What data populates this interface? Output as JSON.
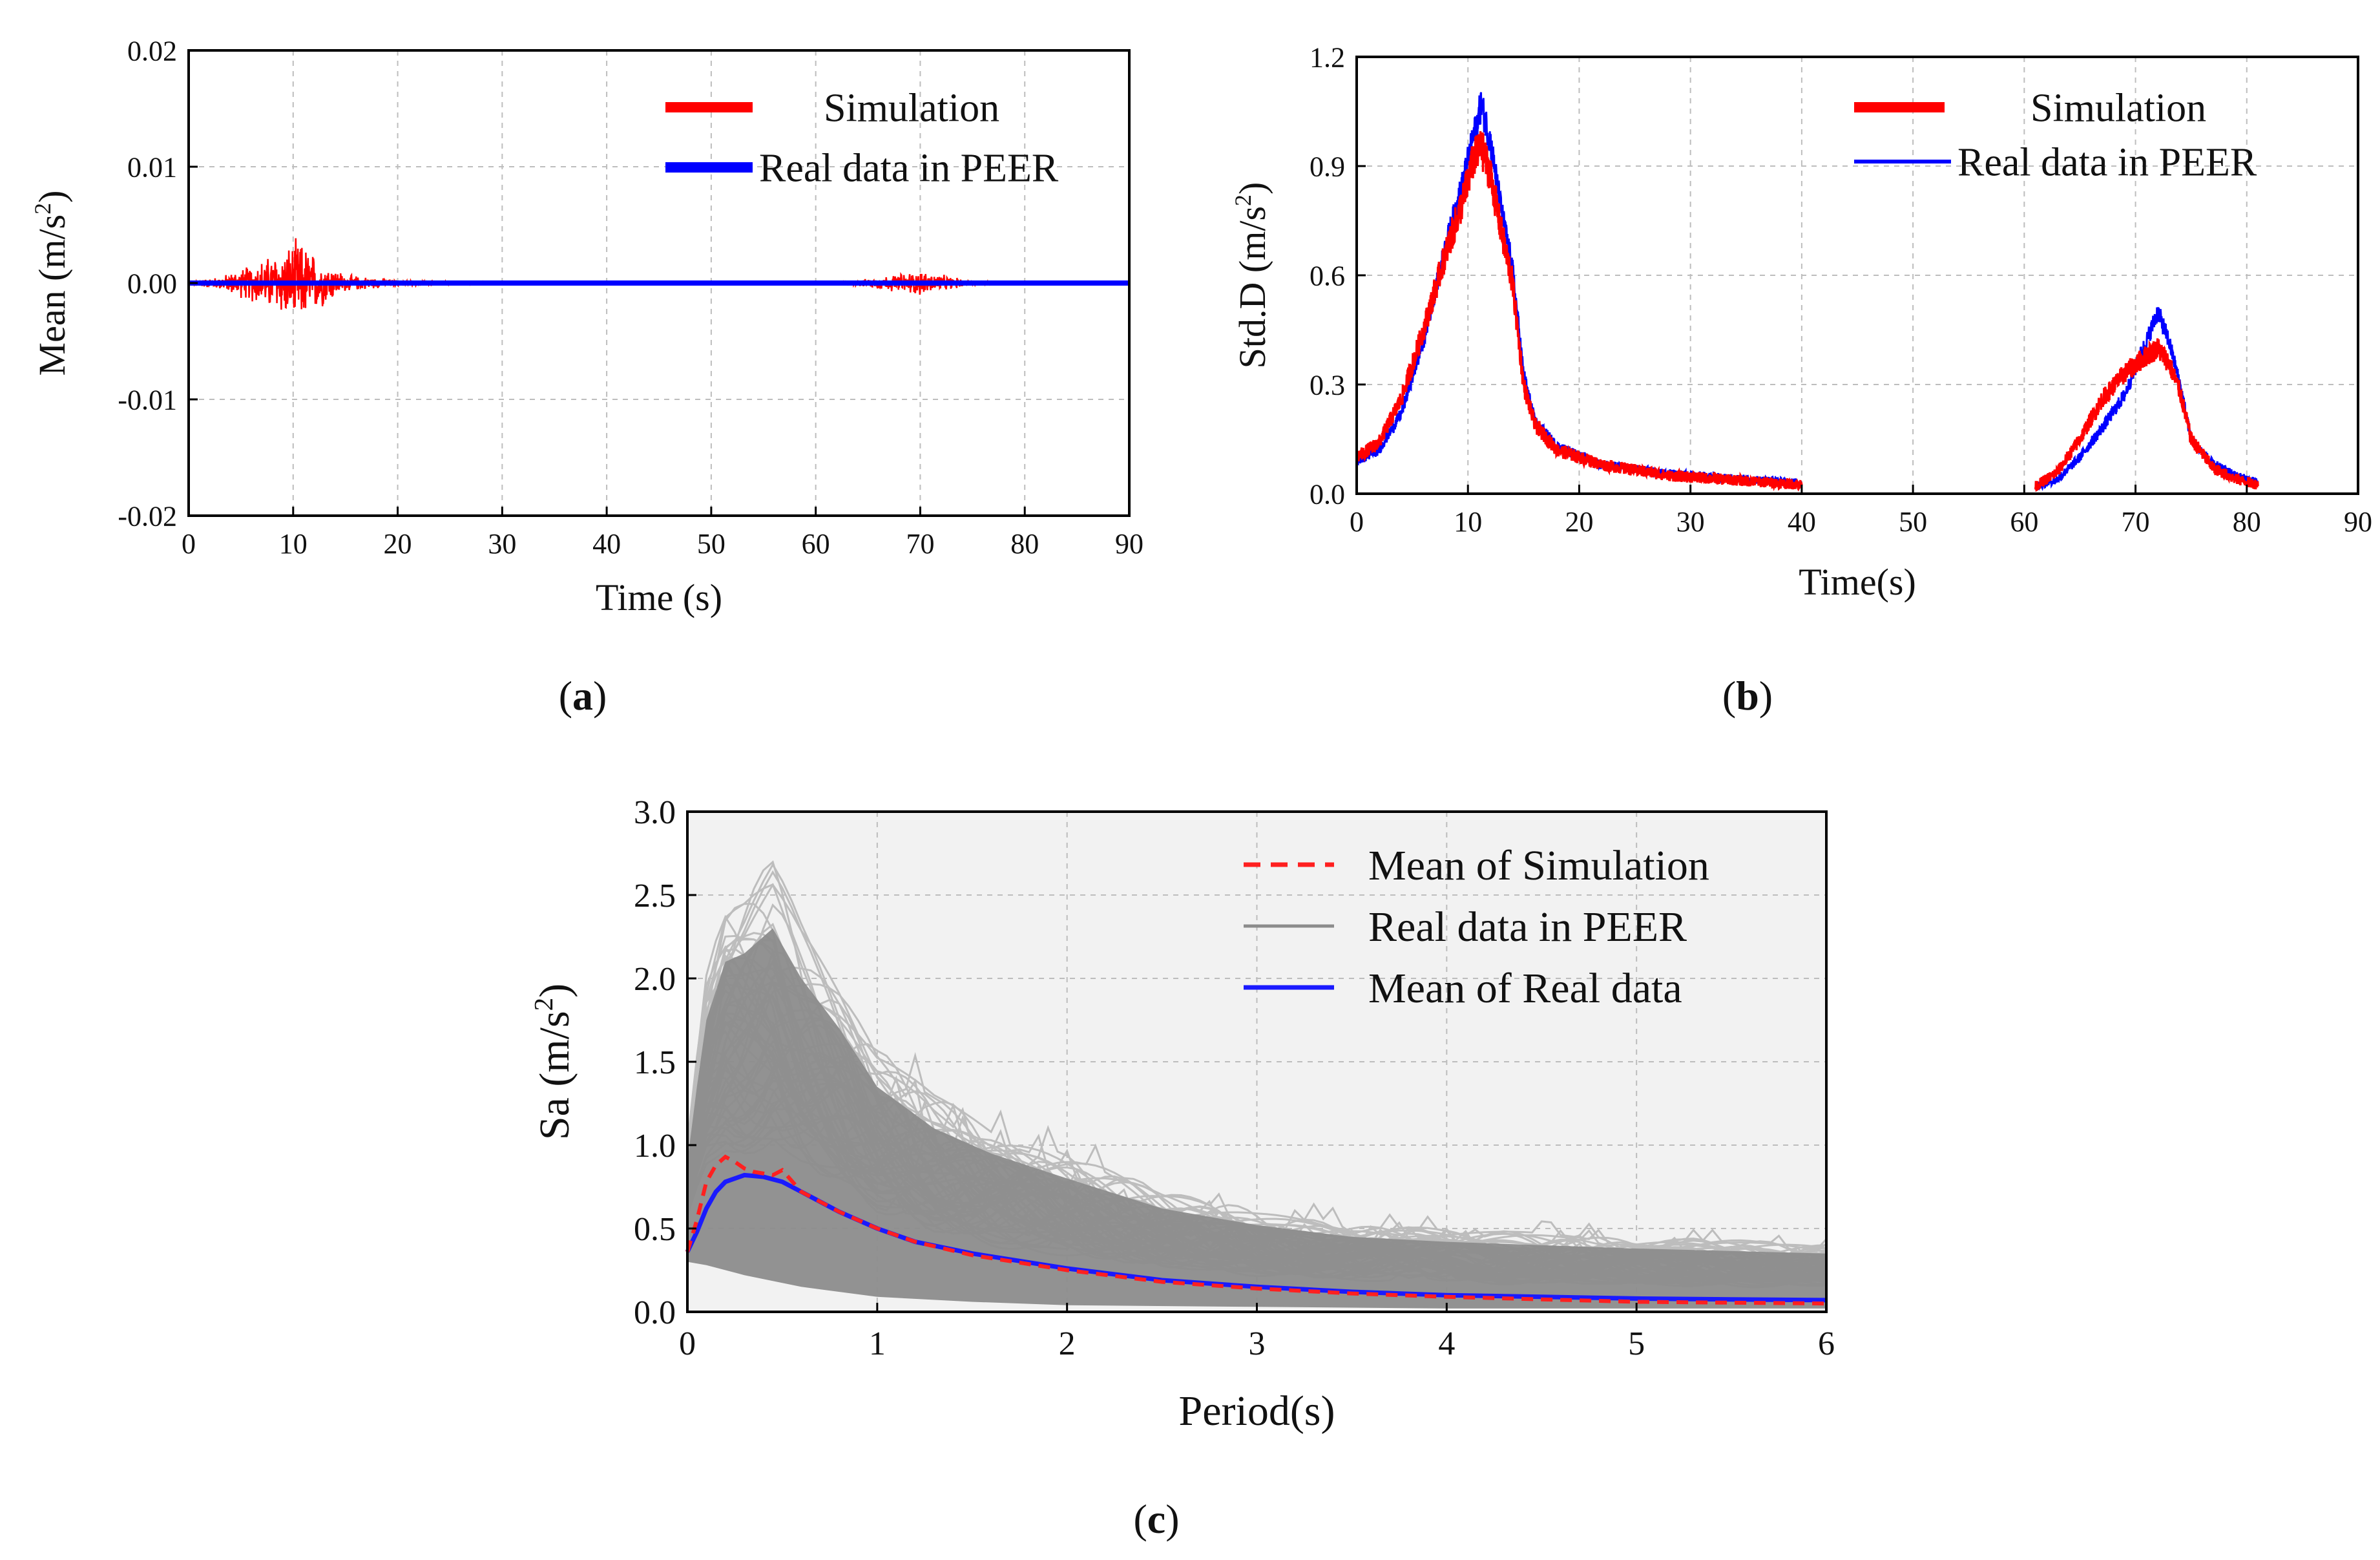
{
  "chart_data": [
    {
      "id": "a",
      "type": "line",
      "caption_letter": "a",
      "xlabel": "Time (s)",
      "ylabel_main": "Mean (m/s",
      "ylabel_sup": "2",
      "ylabel_close": ")",
      "xlim": [
        0,
        90
      ],
      "ylim": [
        -0.02,
        0.02
      ],
      "xticks": [
        0,
        10,
        20,
        30,
        40,
        50,
        60,
        70,
        80,
        90
      ],
      "xtick_labels": [
        "0",
        "10",
        "20",
        "30",
        "40",
        "50",
        "60",
        "70",
        "80",
        "90"
      ],
      "yticks": [
        -0.02,
        -0.01,
        0.0,
        0.01,
        0.02
      ],
      "ytick_labels": [
        "-0.02",
        "-0.01",
        "0.00",
        "0.01",
        "0.02"
      ],
      "grid": true,
      "legend_position": "top-right",
      "series": [
        {
          "name": "Simulation",
          "color": "#ff0000",
          "style": "noise",
          "envelope": [
            [
              0,
              0.0002
            ],
            [
              3,
              0.0006
            ],
            [
              6,
              0.0018
            ],
            [
              9,
              0.0032
            ],
            [
              10.5,
              0.0042
            ],
            [
              12,
              0.0028
            ],
            [
              15,
              0.0008
            ],
            [
              20,
              0.0003
            ],
            [
              25,
              0.0001
            ],
            [
              30,
              5e-05
            ],
            [
              62,
              5e-05
            ],
            [
              65,
              0.0004
            ],
            [
              68,
              0.0009
            ],
            [
              70,
              0.0012
            ],
            [
              72,
              0.0008
            ],
            [
              75,
              0.0002
            ],
            [
              78,
              5e-05
            ],
            [
              90,
              5e-05
            ]
          ]
        },
        {
          "name": "Real data in PEER",
          "color": "#0000ff",
          "style": "flat",
          "envelope": [
            [
              0,
              0.0
            ],
            [
              90,
              0.0
            ]
          ]
        }
      ]
    },
    {
      "id": "b",
      "type": "line",
      "caption_letter": "b",
      "xlabel": "Time(s)",
      "ylabel_main": "Std.D (m/s",
      "ylabel_sup": "2",
      "ylabel_close": ")",
      "xlim": [
        0,
        90
      ],
      "ylim": [
        0,
        1.2
      ],
      "xticks": [
        0,
        10,
        20,
        30,
        40,
        50,
        60,
        70,
        80,
        90
      ],
      "xtick_labels": [
        "0",
        "10",
        "20",
        "30",
        "40",
        "50",
        "60",
        "70",
        "80",
        "90"
      ],
      "yticks": [
        0,
        0.3,
        0.6,
        0.9,
        1.2
      ],
      "ytick_labels": [
        "0.0",
        "0.3",
        "0.6",
        "0.9",
        "1.2"
      ],
      "grid": true,
      "legend_position": "top-right",
      "series": [
        {
          "name": "Real data in PEER",
          "color": "#0000ff",
          "style": "spiky",
          "segments": [
            [
              [
                0,
                0.09
              ],
              [
                2,
                0.12
              ],
              [
                4,
                0.22
              ],
              [
                6,
                0.42
              ],
              [
                8,
                0.68
              ],
              [
                9.5,
                0.85
              ],
              [
                10.5,
                0.98
              ],
              [
                11.2,
                1.07
              ],
              [
                12,
                0.97
              ],
              [
                13,
                0.78
              ],
              [
                14,
                0.62
              ],
              [
                15,
                0.33
              ],
              [
                16,
                0.2
              ],
              [
                18,
                0.13
              ],
              [
                22,
                0.08
              ],
              [
                28,
                0.055
              ],
              [
                35,
                0.04
              ],
              [
                40,
                0.03
              ]
            ],
            [
              [
                61,
                0.02
              ],
              [
                63,
                0.04
              ],
              [
                65,
                0.1
              ],
              [
                67,
                0.18
              ],
              [
                69,
                0.27
              ],
              [
                71,
                0.42
              ],
              [
                72,
                0.5
              ],
              [
                73,
                0.42
              ],
              [
                74,
                0.3
              ],
              [
                75,
                0.15
              ],
              [
                77,
                0.08
              ],
              [
                79,
                0.05
              ],
              [
                81,
                0.03
              ]
            ]
          ],
          "noise_amp": 0.035
        },
        {
          "name": "Simulation",
          "color": "#ff0000",
          "style": "spiky",
          "segments": [
            [
              [
                0,
                0.1
              ],
              [
                2,
                0.14
              ],
              [
                4,
                0.26
              ],
              [
                6,
                0.45
              ],
              [
                8,
                0.66
              ],
              [
                9.5,
                0.8
              ],
              [
                10.5,
                0.92
              ],
              [
                11.2,
                0.95
              ],
              [
                12,
                0.88
              ],
              [
                13,
                0.72
              ],
              [
                14,
                0.58
              ],
              [
                15,
                0.3
              ],
              [
                16,
                0.19
              ],
              [
                18,
                0.12
              ],
              [
                22,
                0.08
              ],
              [
                28,
                0.05
              ],
              [
                35,
                0.035
              ],
              [
                40,
                0.025
              ]
            ],
            [
              [
                61,
                0.02
              ],
              [
                63,
                0.06
              ],
              [
                65,
                0.15
              ],
              [
                67,
                0.26
              ],
              [
                69,
                0.33
              ],
              [
                71,
                0.38
              ],
              [
                72,
                0.4
              ],
              [
                73,
                0.36
              ],
              [
                74,
                0.28
              ],
              [
                75,
                0.15
              ],
              [
                77,
                0.07
              ],
              [
                79,
                0.04
              ],
              [
                81,
                0.025
              ]
            ]
          ],
          "noise_amp": 0.045
        }
      ]
    },
    {
      "id": "c",
      "type": "line",
      "caption_letter": "c",
      "xlabel": "Period(s)",
      "ylabel_main": "Sa (m/s",
      "ylabel_sup": "2",
      "ylabel_close": ")",
      "xlim": [
        0,
        6
      ],
      "ylim": [
        0,
        3.0
      ],
      "xticks": [
        0,
        1,
        2,
        3,
        4,
        5,
        6
      ],
      "xtick_labels": [
        "0",
        "1",
        "2",
        "3",
        "4",
        "5",
        "6"
      ],
      "yticks": [
        0,
        0.5,
        1.0,
        1.5,
        2.0,
        2.5,
        3.0
      ],
      "ytick_labels": [
        "0.0",
        "0.5",
        "1.0",
        "1.5",
        "2.0",
        "2.5",
        "3.0"
      ],
      "grid": true,
      "legend_position": "top-right",
      "background_color": "#f2f2f2",
      "band": {
        "name": "Real data in PEER",
        "color": "#8c8c8c",
        "upper": [
          [
            0,
            0.9
          ],
          [
            0.05,
            1.35
          ],
          [
            0.1,
            1.75
          ],
          [
            0.2,
            2.1
          ],
          [
            0.3,
            2.15
          ],
          [
            0.45,
            2.3
          ],
          [
            0.6,
            2.0
          ],
          [
            0.8,
            1.7
          ],
          [
            1.0,
            1.35
          ],
          [
            1.3,
            1.1
          ],
          [
            1.6,
            0.95
          ],
          [
            2.0,
            0.8
          ],
          [
            2.5,
            0.62
          ],
          [
            3.0,
            0.52
          ],
          [
            3.5,
            0.45
          ],
          [
            4.0,
            0.42
          ],
          [
            5.0,
            0.38
          ],
          [
            6.0,
            0.35
          ]
        ],
        "lower": [
          [
            0,
            0.3
          ],
          [
            0.1,
            0.28
          ],
          [
            0.3,
            0.22
          ],
          [
            0.6,
            0.15
          ],
          [
            1.0,
            0.09
          ],
          [
            1.5,
            0.06
          ],
          [
            2.0,
            0.04
          ],
          [
            3.0,
            0.03
          ],
          [
            4.0,
            0.02
          ],
          [
            6.0,
            0.02
          ]
        ],
        "light_curve_count": 60
      },
      "series": [
        {
          "name": "Mean of Simulation",
          "color": "#ff2020",
          "dash": "dashed",
          "points": [
            [
              0,
              0.36
            ],
            [
              0.05,
              0.55
            ],
            [
              0.1,
              0.78
            ],
            [
              0.15,
              0.88
            ],
            [
              0.2,
              0.93
            ],
            [
              0.25,
              0.9
            ],
            [
              0.3,
              0.86
            ],
            [
              0.35,
              0.84
            ],
            [
              0.45,
              0.82
            ],
            [
              0.5,
              0.85
            ],
            [
              0.6,
              0.72
            ],
            [
              0.8,
              0.6
            ],
            [
              1.0,
              0.5
            ],
            [
              1.2,
              0.42
            ],
            [
              1.5,
              0.34
            ],
            [
              2.0,
              0.25
            ],
            [
              2.5,
              0.18
            ],
            [
              3.0,
              0.14
            ],
            [
              3.5,
              0.11
            ],
            [
              4.0,
              0.09
            ],
            [
              4.5,
              0.075
            ],
            [
              5.0,
              0.06
            ],
            [
              5.5,
              0.055
            ],
            [
              6.0,
              0.05
            ]
          ]
        },
        {
          "name": "Mean of Real data",
          "color": "#1a1aff",
          "dash": "solid",
          "points": [
            [
              0,
              0.36
            ],
            [
              0.05,
              0.48
            ],
            [
              0.1,
              0.62
            ],
            [
              0.15,
              0.72
            ],
            [
              0.2,
              0.78
            ],
            [
              0.3,
              0.82
            ],
            [
              0.4,
              0.81
            ],
            [
              0.5,
              0.78
            ],
            [
              0.6,
              0.72
            ],
            [
              0.8,
              0.6
            ],
            [
              1.0,
              0.5
            ],
            [
              1.2,
              0.42
            ],
            [
              1.5,
              0.35
            ],
            [
              2.0,
              0.26
            ],
            [
              2.5,
              0.19
            ],
            [
              3.0,
              0.15
            ],
            [
              3.5,
              0.12
            ],
            [
              4.0,
              0.1
            ],
            [
              4.5,
              0.09
            ],
            [
              5.0,
              0.08
            ],
            [
              5.5,
              0.075
            ],
            [
              6.0,
              0.07
            ]
          ]
        }
      ]
    }
  ]
}
